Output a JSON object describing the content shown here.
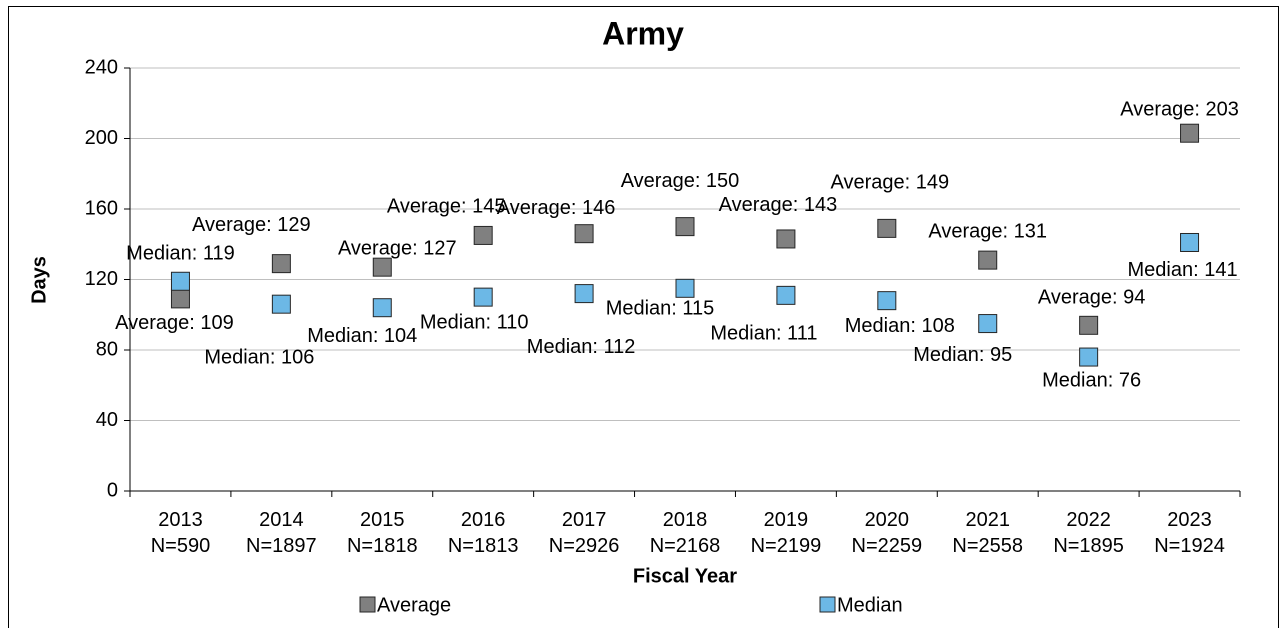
{
  "chart_data": {
    "type": "scatter",
    "title": "Army",
    "x_label": "Fiscal Year",
    "y_label": "Days",
    "categories": [
      "2013\nN=590",
      "2014\nN=1897",
      "2015\nN=1818",
      "2016\nN=1813",
      "2017\nN=2926",
      "2018\nN=2168",
      "2019\nN=2199",
      "2020\nN=2259",
      "2021\nN=2558",
      "2022\nN=1895",
      "2023\nN=1924"
    ],
    "series": [
      {
        "name": "Average",
        "color": "#808080",
        "values": [
          109,
          129,
          127,
          145,
          146,
          150,
          143,
          149,
          131,
          94,
          203
        ],
        "value_labels": [
          "Average: 109",
          "Average: 129",
          "Average: 127",
          "Average: 145",
          "Average: 146",
          "Average: 150",
          "Average: 143",
          "Average: 149",
          "Average: 131",
          "Average: 94",
          "Average: 203"
        ]
      },
      {
        "name": "Median",
        "color": "#6cb8e6",
        "values": [
          119,
          106,
          104,
          110,
          112,
          115,
          111,
          108,
          95,
          76,
          141
        ],
        "value_labels": [
          "Median: 119",
          "Median: 106",
          "Median: 104",
          "Median: 110",
          "Median: 112",
          "Median: 115",
          "Median: 111",
          "Median: 108",
          "Median: 95",
          "Median: 76",
          "Median: 141"
        ]
      }
    ],
    "ylim": [
      0,
      240
    ],
    "yticks": [
      0,
      40,
      80,
      120,
      160,
      200,
      240
    ],
    "grid": true,
    "legend": "bottom"
  }
}
